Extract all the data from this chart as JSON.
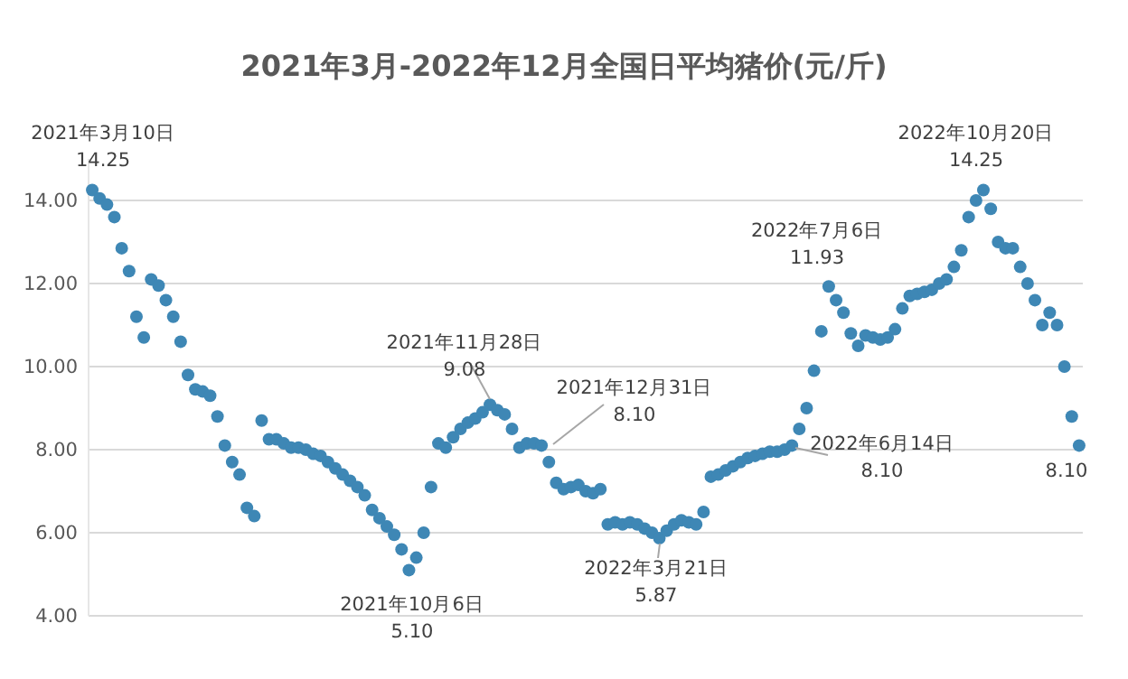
{
  "chart_data": {
    "type": "scatter",
    "title": "2021年3月-2022年12月全国日平均猪价(元/斤)",
    "categories": [
      null,
      null,
      null,
      null,
      null,
      null,
      null,
      null,
      null,
      null,
      null,
      null,
      null,
      null,
      null,
      null,
      null,
      null,
      null,
      null,
      null,
      null,
      null,
      null,
      null,
      null,
      null,
      null,
      null,
      null,
      null,
      null,
      null,
      null,
      null,
      null,
      null,
      null,
      null,
      null,
      null,
      null,
      null,
      null,
      null,
      null,
      null,
      null,
      null,
      null,
      null,
      null,
      null,
      null,
      null,
      null,
      null,
      null,
      null,
      null,
      null,
      null,
      null,
      null,
      null,
      null,
      null,
      null,
      null,
      null,
      null,
      null,
      null,
      null,
      null,
      null,
      null,
      null,
      null,
      null,
      null,
      null,
      null,
      null,
      null,
      null,
      null,
      null,
      null,
      null,
      null,
      null,
      null,
      null,
      null,
      null,
      null,
      null,
      null,
      null,
      null,
      null,
      null,
      null,
      null,
      null,
      null,
      null,
      null,
      null,
      null,
      null,
      null,
      null,
      null,
      null,
      null,
      null,
      null,
      null,
      null,
      null,
      null,
      null,
      null,
      null,
      null,
      null,
      null,
      null,
      null,
      null,
      null,
      null,
      null
    ],
    "series": [
      {
        "color": "#3e87b5",
        "values": [
          14.25,
          14.05,
          13.9,
          13.6,
          12.85,
          12.3,
          11.2,
          10.7,
          12.1,
          11.95,
          11.6,
          11.2,
          10.6,
          9.8,
          9.45,
          9.4,
          9.3,
          8.8,
          8.1,
          7.7,
          7.4,
          6.6,
          6.4,
          8.7,
          8.25,
          8.25,
          8.15,
          8.05,
          8.05,
          8.0,
          7.9,
          7.85,
          7.7,
          7.55,
          7.4,
          7.25,
          7.1,
          6.9,
          6.55,
          6.35,
          6.15,
          5.95,
          5.6,
          5.1,
          5.4,
          6.0,
          7.1,
          8.15,
          8.05,
          8.3,
          8.5,
          8.65,
          8.75,
          8.9,
          9.08,
          8.95,
          8.85,
          8.5,
          8.05,
          8.15,
          8.15,
          8.1,
          7.7,
          7.2,
          7.05,
          7.1,
          7.15,
          7.0,
          6.95,
          7.05,
          6.2,
          6.25,
          6.2,
          6.25,
          6.2,
          6.1,
          6.0,
          5.87,
          6.05,
          6.2,
          6.3,
          6.25,
          6.2,
          6.5,
          7.35,
          7.4,
          7.5,
          7.6,
          7.7,
          7.8,
          7.85,
          7.9,
          7.95,
          7.95,
          8.0,
          8.1,
          8.5,
          9.0,
          9.9,
          10.85,
          11.93,
          11.6,
          11.3,
          10.8,
          10.5,
          10.75,
          10.7,
          10.65,
          10.7,
          10.9,
          11.4,
          11.7,
          11.75,
          11.8,
          11.85,
          12.0,
          12.1,
          12.4,
          12.8,
          13.6,
          14.0,
          14.25,
          13.8,
          13.0,
          12.85,
          12.85,
          12.4,
          12.0,
          11.6,
          11.0,
          11.3,
          11.0,
          10.0,
          8.8,
          8.1
        ]
      }
    ],
    "ylim": [
      4,
      15
    ],
    "yticks": [
      {
        "value": 4,
        "label": "4.00"
      },
      {
        "value": 6,
        "label": "6.00"
      },
      {
        "value": 8,
        "label": "8.00"
      },
      {
        "value": 10,
        "label": "10.00"
      },
      {
        "value": 12,
        "label": "12.00"
      },
      {
        "value": 14,
        "label": "14.00"
      }
    ],
    "grid": "y",
    "tick_labels": "y",
    "marker": "circle",
    "legend": false,
    "annotations": [
      "2021年3月10日\n14.25",
      "2021年10月6日\n5.10",
      "2021年11月28日\n9.08",
      "2021年12月31日\n8.10",
      "2022年3月21日\n5.87",
      "2022年6月14日\n8.10",
      "2022年7月6日\n11.93",
      "2022年10月20日\n14.25",
      "8.10"
    ]
  }
}
